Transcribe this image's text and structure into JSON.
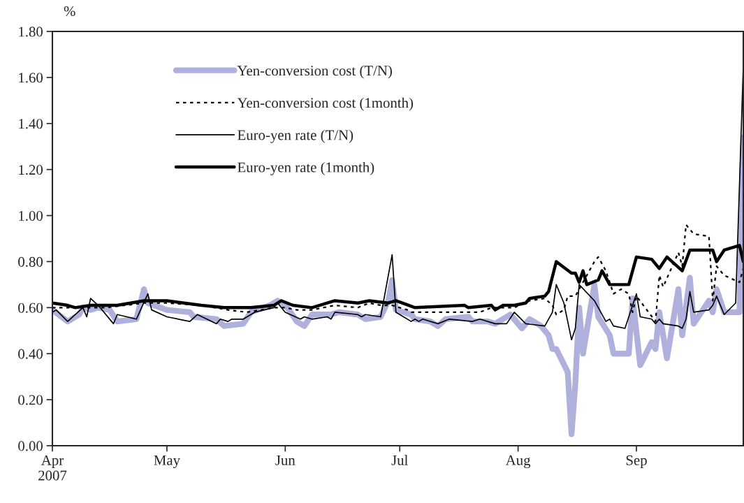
{
  "chart_data": {
    "type": "line",
    "ylabel": "%",
    "xlim": [
      "2007-04-01",
      "2007-09-29"
    ],
    "xticks": [
      {
        "value": "2007-04-01",
        "label": "Apr\n2007"
      },
      {
        "value": "2007-05-01",
        "label": "May"
      },
      {
        "value": "2007-06-01",
        "label": "Jun"
      },
      {
        "value": "2007-07-01",
        "label": "Jul"
      },
      {
        "value": "2007-08-01",
        "label": "Aug"
      },
      {
        "value": "2007-09-01",
        "label": "Sep"
      }
    ],
    "ylim": [
      0,
      1.8
    ],
    "yticks": [
      {
        "value": 0,
        "label": "0.00"
      },
      {
        "value": 0.2,
        "label": "0.20"
      },
      {
        "value": 0.4,
        "label": "0.40"
      },
      {
        "value": 0.6,
        "label": "0.60"
      },
      {
        "value": 0.8,
        "label": "0.80"
      },
      {
        "value": 1.0,
        "label": "1.00"
      },
      {
        "value": 1.2,
        "label": "1.20"
      },
      {
        "value": 1.4,
        "label": "1.40"
      },
      {
        "value": 1.6,
        "label": "1.60"
      },
      {
        "value": 1.8,
        "label": "1.80"
      }
    ],
    "grid": false,
    "legend": "top left",
    "series": [
      {
        "name": "Yen-conversion cost (T/N)",
        "color": "#b0b0dd",
        "line_style": "solid",
        "x": [
          "2007-04-01",
          "2007-04-05",
          "2007-04-08",
          "2007-04-09",
          "2007-04-11",
          "2007-04-13",
          "2007-04-16",
          "2007-04-18",
          "2007-04-23",
          "2007-04-25",
          "2007-04-26",
          "2007-05-01",
          "2007-05-07",
          "2007-05-08",
          "2007-05-14",
          "2007-05-16",
          "2007-05-21",
          "2007-05-23",
          "2007-05-28",
          "2007-05-30",
          "2007-06-01",
          "2007-06-02",
          "2007-06-04",
          "2007-06-06",
          "2007-06-08",
          "2007-06-13",
          "2007-06-15",
          "2007-06-20",
          "2007-06-22",
          "2007-06-26",
          "2007-06-28",
          "2007-06-29",
          "2007-06-30",
          "2007-07-04",
          "2007-07-05",
          "2007-07-09",
          "2007-07-11",
          "2007-07-13",
          "2007-07-19",
          "2007-07-20",
          "2007-07-24",
          "2007-07-26",
          "2007-07-30",
          "2007-08-02",
          "2007-08-04",
          "2007-08-07",
          "2007-08-09",
          "2007-08-10",
          "2007-08-11",
          "2007-08-14",
          "2007-08-15",
          "2007-08-16",
          "2007-08-17",
          "2007-08-18",
          "2007-08-21",
          "2007-08-22",
          "2007-08-25",
          "2007-08-26",
          "2007-08-30",
          "2007-08-31",
          "2007-09-02",
          "2007-09-05",
          "2007-09-06",
          "2007-09-07",
          "2007-09-09",
          "2007-09-12",
          "2007-09-13",
          "2007-09-15",
          "2007-09-16",
          "2007-09-20",
          "2007-09-21",
          "2007-09-22",
          "2007-09-24",
          "2007-09-28",
          "2007-09-29"
        ],
        "values": [
          0.59,
          0.54,
          0.57,
          0.6,
          0.59,
          0.6,
          0.59,
          0.54,
          0.55,
          0.68,
          0.62,
          0.59,
          0.58,
          0.56,
          0.55,
          0.52,
          0.53,
          0.58,
          0.61,
          0.63,
          0.61,
          0.59,
          0.54,
          0.52,
          0.57,
          0.57,
          0.58,
          0.57,
          0.55,
          0.56,
          0.63,
          0.72,
          0.59,
          0.57,
          0.55,
          0.54,
          0.52,
          0.55,
          0.56,
          0.54,
          0.54,
          0.53,
          0.57,
          0.51,
          0.55,
          0.52,
          0.48,
          0.42,
          0.42,
          0.32,
          0.05,
          0.27,
          0.6,
          0.4,
          0.7,
          0.56,
          0.48,
          0.4,
          0.4,
          0.64,
          0.35,
          0.45,
          0.42,
          0.58,
          0.38,
          0.68,
          0.48,
          0.73,
          0.53,
          0.63,
          0.58,
          0.68,
          0.58,
          0.58,
          1.34
        ]
      },
      {
        "name": "Yen-conversion cost (1month)",
        "color": "#000000",
        "line_style": "dotted",
        "x": [
          "2007-04-01",
          "2007-04-08",
          "2007-04-15",
          "2007-04-25",
          "2007-05-01",
          "2007-05-10",
          "2007-05-17",
          "2007-05-22",
          "2007-05-29",
          "2007-06-01",
          "2007-06-04",
          "2007-06-08",
          "2007-06-14",
          "2007-06-20",
          "2007-06-23",
          "2007-06-26",
          "2007-06-29",
          "2007-07-03",
          "2007-07-04",
          "2007-07-15",
          "2007-07-22",
          "2007-07-25",
          "2007-07-31",
          "2007-08-04",
          "2007-08-08",
          "2007-08-10",
          "2007-08-11",
          "2007-08-13",
          "2007-08-14",
          "2007-08-16",
          "2007-08-17",
          "2007-08-19",
          "2007-08-21",
          "2007-08-22",
          "2007-08-24",
          "2007-08-26",
          "2007-08-28",
          "2007-08-30",
          "2007-08-31",
          "2007-09-01",
          "2007-09-06",
          "2007-09-07",
          "2007-09-08",
          "2007-09-12",
          "2007-09-13",
          "2007-09-14",
          "2007-09-16",
          "2007-09-20",
          "2007-09-21",
          "2007-09-22",
          "2007-09-24",
          "2007-09-28",
          "2007-09-29"
        ],
        "values": [
          0.6,
          0.6,
          0.6,
          0.62,
          0.62,
          0.61,
          0.59,
          0.58,
          0.6,
          0.6,
          0.59,
          0.59,
          0.61,
          0.6,
          0.62,
          0.61,
          0.61,
          0.59,
          0.58,
          0.58,
          0.58,
          0.6,
          0.6,
          0.63,
          0.64,
          0.61,
          0.57,
          0.59,
          0.65,
          0.65,
          0.68,
          0.74,
          0.8,
          0.82,
          0.76,
          0.66,
          0.68,
          0.66,
          0.58,
          0.65,
          0.54,
          0.74,
          0.69,
          0.84,
          0.78,
          0.96,
          0.92,
          0.91,
          0.63,
          0.78,
          0.74,
          0.71,
          0.77
        ]
      },
      {
        "name": "Euro-yen rate (T/N)",
        "color": "#000000",
        "line_style": "solid",
        "x": [
          "2007-04-01",
          "2007-04-02",
          "2007-04-05",
          "2007-04-09",
          "2007-04-10",
          "2007-04-11",
          "2007-04-13",
          "2007-04-17",
          "2007-04-18",
          "2007-04-23",
          "2007-04-26",
          "2007-04-27",
          "2007-05-01",
          "2007-05-07",
          "2007-05-09",
          "2007-05-14",
          "2007-05-15",
          "2007-05-17",
          "2007-05-18",
          "2007-05-21",
          "2007-05-24",
          "2007-05-29",
          "2007-05-30",
          "2007-06-01",
          "2007-06-05",
          "2007-06-06",
          "2007-06-08",
          "2007-06-12",
          "2007-06-13",
          "2007-06-14",
          "2007-06-20",
          "2007-06-21",
          "2007-06-22",
          "2007-06-26",
          "2007-06-29",
          "2007-06-30",
          "2007-07-04",
          "2007-07-05",
          "2007-07-06",
          "2007-07-07",
          "2007-07-11",
          "2007-07-14",
          "2007-07-20",
          "2007-07-22",
          "2007-07-26",
          "2007-07-29",
          "2007-07-31",
          "2007-08-03",
          "2007-08-08",
          "2007-08-10",
          "2007-08-11",
          "2007-08-13",
          "2007-08-14",
          "2007-08-15",
          "2007-08-16",
          "2007-08-17",
          "2007-08-21",
          "2007-08-24",
          "2007-08-25",
          "2007-08-26",
          "2007-08-29",
          "2007-09-01",
          "2007-09-02",
          "2007-09-05",
          "2007-09-06",
          "2007-09-07",
          "2007-09-08",
          "2007-09-12",
          "2007-09-13",
          "2007-09-14",
          "2007-09-15",
          "2007-09-16",
          "2007-09-20",
          "2007-09-21",
          "2007-09-22",
          "2007-09-24",
          "2007-09-27",
          "2007-09-29"
        ],
        "values": [
          0.58,
          0.59,
          0.54,
          0.6,
          0.56,
          0.64,
          0.61,
          0.53,
          0.57,
          0.55,
          0.66,
          0.59,
          0.56,
          0.54,
          0.57,
          0.53,
          0.55,
          0.54,
          0.55,
          0.55,
          0.58,
          0.6,
          0.62,
          0.58,
          0.55,
          0.56,
          0.55,
          0.56,
          0.55,
          0.58,
          0.57,
          0.56,
          0.57,
          0.56,
          0.83,
          0.58,
          0.54,
          0.55,
          0.54,
          0.55,
          0.53,
          0.55,
          0.54,
          0.55,
          0.53,
          0.53,
          0.58,
          0.53,
          0.52,
          0.58,
          0.7,
          0.62,
          0.54,
          0.46,
          0.51,
          0.7,
          0.63,
          0.54,
          0.55,
          0.52,
          0.51,
          0.66,
          0.56,
          0.55,
          0.53,
          0.55,
          0.53,
          0.52,
          0.51,
          0.55,
          0.67,
          0.58,
          0.59,
          0.61,
          0.65,
          0.57,
          0.62,
          1.65
        ]
      },
      {
        "name": "Euro-yen rate (1month)",
        "color": "#000000",
        "line_style": "solid",
        "x": [
          "2007-04-01",
          "2007-04-05",
          "2007-04-07",
          "2007-04-11",
          "2007-04-18",
          "2007-04-25",
          "2007-05-01",
          "2007-05-10",
          "2007-05-16",
          "2007-05-23",
          "2007-05-29",
          "2007-05-31",
          "2007-06-03",
          "2007-06-08",
          "2007-06-14",
          "2007-06-20",
          "2007-06-23",
          "2007-06-28",
          "2007-06-30",
          "2007-07-05",
          "2007-07-18",
          "2007-07-19",
          "2007-07-25",
          "2007-07-26",
          "2007-07-28",
          "2007-07-31",
          "2007-08-03",
          "2007-08-04",
          "2007-08-08",
          "2007-08-09",
          "2007-08-11",
          "2007-08-15",
          "2007-08-16",
          "2007-08-17",
          "2007-08-18",
          "2007-08-19",
          "2007-08-22",
          "2007-08-23",
          "2007-08-25",
          "2007-08-30",
          "2007-09-01",
          "2007-09-05",
          "2007-09-07",
          "2007-09-09",
          "2007-09-13",
          "2007-09-15",
          "2007-09-21",
          "2007-09-22",
          "2007-09-24",
          "2007-09-28",
          "2007-09-29"
        ],
        "values": [
          0.62,
          0.61,
          0.6,
          0.61,
          0.61,
          0.63,
          0.63,
          0.61,
          0.6,
          0.6,
          0.61,
          0.63,
          0.61,
          0.6,
          0.63,
          0.62,
          0.63,
          0.62,
          0.63,
          0.6,
          0.61,
          0.6,
          0.61,
          0.59,
          0.61,
          0.61,
          0.62,
          0.64,
          0.65,
          0.67,
          0.8,
          0.75,
          0.75,
          0.71,
          0.76,
          0.7,
          0.72,
          0.76,
          0.7,
          0.7,
          0.82,
          0.81,
          0.77,
          0.82,
          0.76,
          0.85,
          0.85,
          0.8,
          0.85,
          0.87,
          0.8
        ]
      }
    ]
  }
}
